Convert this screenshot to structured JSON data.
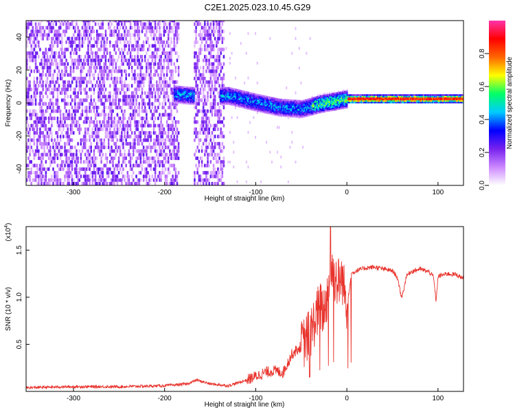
{
  "title": "C2E1.2025.023.10.45.G29",
  "colors": {
    "snr_line": "#e8312a",
    "frame": "#000000",
    "background": "#ffffff"
  },
  "chart_data": [
    {
      "type": "heatmap",
      "xlabel": "Height of straight line (km)",
      "ylabel": "Frequency (Hz)",
      "xlim": [
        -352,
        128
      ],
      "ylim": [
        -50,
        50
      ],
      "xticks": [
        -300,
        -200,
        -100,
        0,
        100
      ],
      "yticks": [
        -40,
        -20,
        0,
        20,
        40
      ],
      "xtick_labels": [
        "-300",
        "-200",
        "-100",
        "0",
        "100"
      ],
      "ytick_labels": [
        "-40",
        "-20",
        "0",
        "20",
        "40"
      ],
      "colorbar": {
        "label": "Normalized spectral amplitude",
        "range": [
          0,
          1
        ],
        "ticks": [
          0.0,
          0.2,
          0.4,
          0.6,
          0.8
        ],
        "tick_labels": [
          "0.0",
          "0.2",
          "0.4",
          "0.6",
          "0.8"
        ],
        "colors": [
          "#ffffff",
          "#cc88ff",
          "#7722ee",
          "#0000ff",
          "#00ccff",
          "#00ff66",
          "#ffff00",
          "#ff6600",
          "#ff0000",
          "#ff33aa"
        ]
      },
      "ridge": {
        "x": [
          -190,
          -170,
          -130,
          -100,
          -75,
          -50,
          -30,
          -10,
          0,
          50,
          100,
          128
        ],
        "frequency": [
          5,
          4,
          4,
          0,
          -3,
          -4,
          -1,
          1,
          2,
          2,
          2,
          2
        ]
      },
      "noise_regions": [
        {
          "x_from": -352,
          "x_to": -185
        },
        {
          "x_from": -168,
          "x_to": -135
        }
      ]
    },
    {
      "type": "line",
      "xlabel": "Height of straight line (km)",
      "ylabel": "SNR (10 * v/v)",
      "ylabel_multiplier": "(x10",
      "ylabel_exponent": "4",
      "ylabel_multiplier_close": ")",
      "xlim": [
        -352,
        128
      ],
      "ylim": [
        0,
        1.75
      ],
      "xticks": [
        -300,
        -200,
        -100,
        0,
        100
      ],
      "yticks": [
        0.5,
        1.0,
        1.5
      ],
      "xtick_labels": [
        "-300",
        "-200",
        "-100",
        "0",
        "100"
      ],
      "ytick_labels": [
        "0.5",
        "1.0",
        "1.5"
      ],
      "series": [
        {
          "x": [
            -350,
            -300,
            -250,
            -200,
            -175,
            -165,
            -150,
            -130,
            -110,
            -100,
            -90,
            -80,
            -70,
            -60,
            -50,
            -40,
            -30,
            -25,
            -20,
            -18,
            -15,
            -10,
            -5,
            0,
            5,
            10,
            20,
            30,
            40,
            50,
            55,
            60,
            63,
            65,
            70,
            80,
            90,
            95,
            98,
            100,
            110,
            120,
            128
          ],
          "y": [
            0.04,
            0.05,
            0.05,
            0.06,
            0.08,
            0.12,
            0.08,
            0.06,
            0.12,
            0.16,
            0.2,
            0.22,
            0.2,
            0.4,
            0.48,
            0.62,
            0.9,
            0.85,
            1.1,
            1.3,
            1.25,
            1.15,
            1.2,
            0.9,
            1.25,
            1.28,
            1.31,
            1.32,
            1.3,
            1.28,
            1.22,
            1.0,
            1.1,
            1.22,
            1.27,
            1.3,
            1.27,
            1.22,
            0.95,
            1.22,
            1.25,
            1.24,
            1.2
          ]
        }
      ]
    }
  ]
}
